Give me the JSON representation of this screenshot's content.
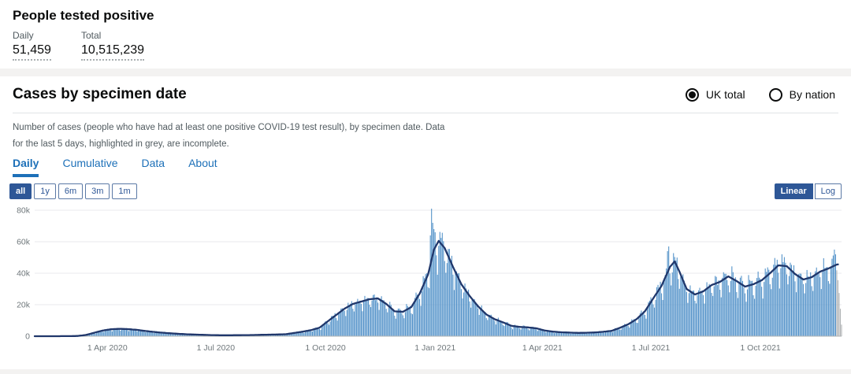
{
  "summary": {
    "title": "People tested positive",
    "metrics": [
      {
        "label": "Daily",
        "value": "51,459"
      },
      {
        "label": "Total",
        "value": "10,515,239"
      }
    ]
  },
  "card": {
    "title": "Cases by specimen date",
    "radios": [
      {
        "label": "UK total",
        "selected": true
      },
      {
        "label": "By nation",
        "selected": false
      }
    ],
    "description_lines": [
      "Number of cases (people who have had at least one positive COVID-19 test result), by specimen date. Data",
      "for the last 5 days, highlighted in grey, are incomplete."
    ],
    "tabs": [
      {
        "label": "Daily",
        "active": true
      },
      {
        "label": "Cumulative",
        "active": false
      },
      {
        "label": "Data",
        "active": false
      },
      {
        "label": "About",
        "active": false
      }
    ],
    "range_buttons": [
      {
        "label": "all",
        "active": true
      },
      {
        "label": "1y",
        "active": false
      },
      {
        "label": "6m",
        "active": false
      },
      {
        "label": "3m",
        "active": false
      },
      {
        "label": "1m",
        "active": false
      }
    ],
    "scale_buttons": [
      {
        "label": "Linear",
        "active": true
      },
      {
        "label": "Log",
        "active": false
      }
    ]
  },
  "colors": {
    "accent_blue": "#1d70b8",
    "active_button": "#2e5797",
    "bar_blue": "#5694ca",
    "line_navy": "#20376b",
    "incomplete_grey": "#b1b4b6",
    "band_grey": "#f3f2f1"
  },
  "chart_data": {
    "type": "bar",
    "title": "Cases by specimen date",
    "xlabel": "",
    "ylabel": "",
    "ylim": [
      0,
      84000
    ],
    "grid": true,
    "legend": "none",
    "y_ticks": [
      "0",
      "20k",
      "40k",
      "60k",
      "80k"
    ],
    "y_tick_values": [
      0,
      20000,
      40000,
      60000,
      80000
    ],
    "x_start": "2020-01-31",
    "x_end": "2021-12-08",
    "x_ticks": [
      {
        "date": "2020-04-01",
        "label": "1 Apr 2020"
      },
      {
        "date": "2020-07-01",
        "label": "1 Jul 2020"
      },
      {
        "date": "2020-10-01",
        "label": "1 Oct 2020"
      },
      {
        "date": "2021-01-01",
        "label": "1 Jan 2021"
      },
      {
        "date": "2021-04-01",
        "label": "1 Apr 2021"
      },
      {
        "date": "2021-07-01",
        "label": "1 Jul 2021"
      },
      {
        "date": "2021-10-01",
        "label": "1 Oct 2021"
      }
    ],
    "series": [
      {
        "name": "Daily cases by specimen date",
        "kind": "bar",
        "color": "#5694ca"
      },
      {
        "name": "7-day rolling average",
        "kind": "line",
        "color": "#20376b"
      }
    ],
    "rolling_average_anchors": [
      [
        "2020-01-31",
        5
      ],
      [
        "2020-02-15",
        10
      ],
      [
        "2020-02-29",
        40
      ],
      [
        "2020-03-07",
        150
      ],
      [
        "2020-03-14",
        800
      ],
      [
        "2020-03-21",
        2200
      ],
      [
        "2020-03-28",
        3600
      ],
      [
        "2020-04-04",
        4400
      ],
      [
        "2020-04-11",
        4700
      ],
      [
        "2020-04-18",
        4500
      ],
      [
        "2020-04-25",
        4100
      ],
      [
        "2020-05-02",
        3400
      ],
      [
        "2020-05-09",
        2800
      ],
      [
        "2020-05-16",
        2300
      ],
      [
        "2020-05-23",
        1900
      ],
      [
        "2020-05-30",
        1550
      ],
      [
        "2020-06-06",
        1250
      ],
      [
        "2020-06-13",
        1050
      ],
      [
        "2020-06-20",
        880
      ],
      [
        "2020-06-27",
        720
      ],
      [
        "2020-07-04",
        620
      ],
      [
        "2020-07-11",
        590
      ],
      [
        "2020-07-18",
        640
      ],
      [
        "2020-07-25",
        690
      ],
      [
        "2020-08-01",
        740
      ],
      [
        "2020-08-08",
        880
      ],
      [
        "2020-08-15",
        1000
      ],
      [
        "2020-08-22",
        1100
      ],
      [
        "2020-08-29",
        1300
      ],
      [
        "2020-09-05",
        2100
      ],
      [
        "2020-09-12",
        2900
      ],
      [
        "2020-09-19",
        3900
      ],
      [
        "2020-09-26",
        5400
      ],
      [
        "2020-10-03",
        9500
      ],
      [
        "2020-10-10",
        13500
      ],
      [
        "2020-10-17",
        17500
      ],
      [
        "2020-10-24",
        20500
      ],
      [
        "2020-10-31",
        22000
      ],
      [
        "2020-11-07",
        23500
      ],
      [
        "2020-11-14",
        24000
      ],
      [
        "2020-11-21",
        20500
      ],
      [
        "2020-11-28",
        15800
      ],
      [
        "2020-12-05",
        15500
      ],
      [
        "2020-12-12",
        18500
      ],
      [
        "2020-12-19",
        27000
      ],
      [
        "2020-12-26",
        39000
      ],
      [
        "2020-12-31",
        55000
      ],
      [
        "2021-01-04",
        60500
      ],
      [
        "2021-01-09",
        56000
      ],
      [
        "2021-01-16",
        44000
      ],
      [
        "2021-01-23",
        33000
      ],
      [
        "2021-01-30",
        25500
      ],
      [
        "2021-02-06",
        19000
      ],
      [
        "2021-02-13",
        13800
      ],
      [
        "2021-02-20",
        10800
      ],
      [
        "2021-02-27",
        8800
      ],
      [
        "2021-03-06",
        6600
      ],
      [
        "2021-03-13",
        5900
      ],
      [
        "2021-03-20",
        5600
      ],
      [
        "2021-03-27",
        5000
      ],
      [
        "2021-04-03",
        3600
      ],
      [
        "2021-04-10",
        2900
      ],
      [
        "2021-04-17",
        2500
      ],
      [
        "2021-04-24",
        2300
      ],
      [
        "2021-05-01",
        2100
      ],
      [
        "2021-05-08",
        2200
      ],
      [
        "2021-05-15",
        2400
      ],
      [
        "2021-05-22",
        2800
      ],
      [
        "2021-05-29",
        3400
      ],
      [
        "2021-06-05",
        5300
      ],
      [
        "2021-06-12",
        7600
      ],
      [
        "2021-06-19",
        10800
      ],
      [
        "2021-06-26",
        15800
      ],
      [
        "2021-07-03",
        24000
      ],
      [
        "2021-07-10",
        32000
      ],
      [
        "2021-07-17",
        44000
      ],
      [
        "2021-07-21",
        47500
      ],
      [
        "2021-07-25",
        41000
      ],
      [
        "2021-07-31",
        30000
      ],
      [
        "2021-08-07",
        26500
      ],
      [
        "2021-08-14",
        28500
      ],
      [
        "2021-08-21",
        32500
      ],
      [
        "2021-08-28",
        34500
      ],
      [
        "2021-09-04",
        38000
      ],
      [
        "2021-09-11",
        35000
      ],
      [
        "2021-09-18",
        31500
      ],
      [
        "2021-09-25",
        33000
      ],
      [
        "2021-10-02",
        35500
      ],
      [
        "2021-10-09",
        40000
      ],
      [
        "2021-10-16",
        45000
      ],
      [
        "2021-10-23",
        44500
      ],
      [
        "2021-10-30",
        39500
      ],
      [
        "2021-11-06",
        36000
      ],
      [
        "2021-11-13",
        37500
      ],
      [
        "2021-11-20",
        41000
      ],
      [
        "2021-11-27",
        43000
      ],
      [
        "2021-12-04",
        45500
      ],
      [
        "2021-12-08",
        46000
      ]
    ],
    "bar_overrides": [
      [
        "2020-12-28",
        64000
      ],
      [
        "2020-12-29",
        81000
      ],
      [
        "2020-12-30",
        72000
      ],
      [
        "2020-12-31",
        68000
      ],
      [
        "2021-01-01",
        66000
      ],
      [
        "2021-07-15",
        54000
      ],
      [
        "2021-07-16",
        57000
      ],
      [
        "2021-10-19",
        52000
      ],
      [
        "2021-12-02",
        55000
      ],
      [
        "2021-12-03",
        52000
      ]
    ],
    "dow_factors": [
      1.04,
      0.86,
      0.72,
      0.96,
      1.12,
      1.1,
      1.05
    ],
    "incomplete": {
      "days": 5,
      "factors": [
        0.92,
        0.78,
        0.6,
        0.38,
        0.16
      ],
      "color": "#b1b4b6"
    },
    "bar_color": "#5694ca",
    "line_color": "#20376b",
    "grid_color": "#e8eaec",
    "axis_color": "#b1b4b6",
    "axis_label_color": "#6f777b"
  }
}
